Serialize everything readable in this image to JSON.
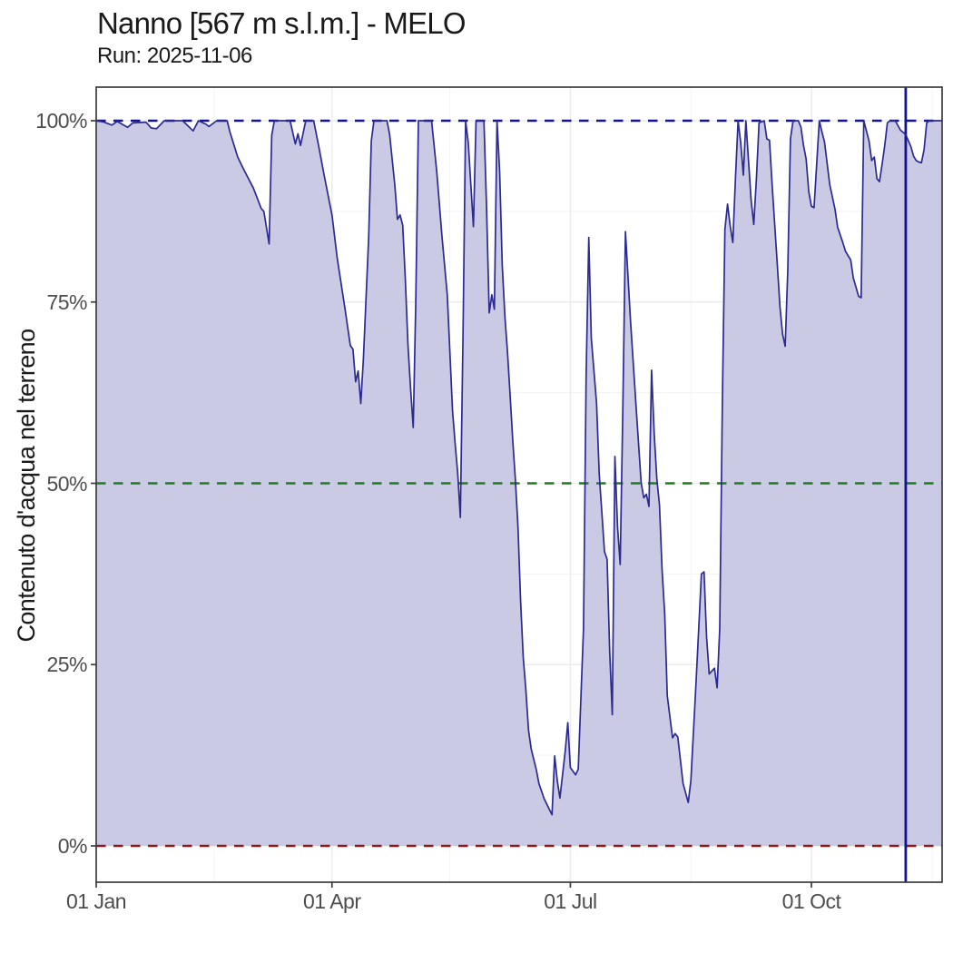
{
  "header": {
    "title": "Nanno [567 m s.l.m.] - MELO",
    "subtitle": "Run: 2025-11-06"
  },
  "colors": {
    "series_line": "#2a2a90",
    "series_fill": "#cbcae4",
    "threshold_100": "#14148f",
    "threshold_50": "#1f7d1f",
    "threshold_0": "#8f1a1a",
    "run_date_line": "#14148f",
    "grid_major": "#ebebeb",
    "grid_minor": "#f3f3f3",
    "panel_border": "#3c3c3c",
    "tick_text": "#4d4d4d",
    "title_text": "#1a1a1a"
  },
  "chart_data": {
    "type": "area",
    "title": "Nanno [567 m s.l.m.] - MELO",
    "subtitle": "Run: 2025-11-06",
    "xlabel": "",
    "ylabel": "Contenuto d'acqua nel terreno",
    "ylim": [
      -5,
      104.6
    ],
    "x_range": [
      "2025-01-01",
      "2025-11-20"
    ],
    "grid": "major+minor",
    "legend": "none",
    "y_ticks": [
      {
        "label": "0%",
        "value": 0
      },
      {
        "label": "25%",
        "value": 25
      },
      {
        "label": "50%",
        "value": 50
      },
      {
        "label": "75%",
        "value": 75
      },
      {
        "label": "100%",
        "value": 100
      }
    ],
    "x_ticks": [
      {
        "label": "01 Jan",
        "date": "2025-01-01"
      },
      {
        "label": "01 Apr",
        "date": "2025-04-01"
      },
      {
        "label": "01 Jul",
        "date": "2025-07-01"
      },
      {
        "label": "01 Oct",
        "date": "2025-10-01"
      }
    ],
    "x_minor_ticks": [
      "2025-02-15",
      "2025-05-16",
      "2025-08-16",
      "2025-11-16"
    ],
    "y_minor_ticks": [
      12.5,
      37.5,
      62.5,
      87.5
    ],
    "reference_lines": [
      {
        "axis": "y",
        "value": 100,
        "style": "dashed",
        "color": "#14148f",
        "name": "saturation-100pct"
      },
      {
        "axis": "y",
        "value": 50,
        "style": "dashed",
        "color": "#1f7d1f",
        "name": "threshold-50pct"
      },
      {
        "axis": "y",
        "value": 0,
        "style": "dashed",
        "color": "#8f1a1a",
        "name": "wilting-0pct"
      },
      {
        "axis": "x",
        "date": "2025-11-06",
        "style": "solid",
        "color": "#14148f",
        "name": "run-date"
      }
    ],
    "series": [
      {
        "name": "Contenuto d'acqua nel terreno",
        "fill": "#cbcae4",
        "line": "#2a2a90",
        "points": [
          [
            "2025-01-01",
            100
          ],
          [
            "2025-01-04",
            99.8
          ],
          [
            "2025-01-07",
            99.4
          ],
          [
            "2025-01-09",
            99.9
          ],
          [
            "2025-01-13",
            99.1
          ],
          [
            "2025-01-15",
            99.7
          ],
          [
            "2025-01-20",
            99.8
          ],
          [
            "2025-01-22",
            99.0
          ],
          [
            "2025-01-24",
            98.9
          ],
          [
            "2025-01-27",
            100
          ],
          [
            "2025-02-03",
            100
          ],
          [
            "2025-02-05",
            99.3
          ],
          [
            "2025-02-07",
            98.6
          ],
          [
            "2025-02-09",
            100
          ],
          [
            "2025-02-12",
            99.5
          ],
          [
            "2025-02-13",
            99.2
          ],
          [
            "2025-02-16",
            100
          ],
          [
            "2025-02-20",
            100
          ],
          [
            "2025-02-21",
            98.5
          ],
          [
            "2025-02-24",
            95.0
          ],
          [
            "2025-02-26",
            93.5
          ],
          [
            "2025-03-02",
            90.7
          ],
          [
            "2025-03-05",
            87.9
          ],
          [
            "2025-03-06",
            87.5
          ],
          [
            "2025-03-08",
            83.0
          ],
          [
            "2025-03-09",
            98.0
          ],
          [
            "2025-03-10",
            100
          ],
          [
            "2025-03-16",
            100
          ],
          [
            "2025-03-18",
            96.8
          ],
          [
            "2025-03-19",
            98.2
          ],
          [
            "2025-03-20",
            96.6
          ],
          [
            "2025-03-22",
            100
          ],
          [
            "2025-03-25",
            100
          ],
          [
            "2025-03-27",
            96.4
          ],
          [
            "2025-03-29",
            92.5
          ],
          [
            "2025-04-01",
            87.0
          ],
          [
            "2025-04-03",
            81.0
          ],
          [
            "2025-04-06",
            74.0
          ],
          [
            "2025-04-08",
            69.0
          ],
          [
            "2025-04-09",
            68.5
          ],
          [
            "2025-04-10",
            64.0
          ],
          [
            "2025-04-11",
            65.5
          ],
          [
            "2025-04-12",
            61.0
          ],
          [
            "2025-04-13",
            67.2
          ],
          [
            "2025-04-15",
            83.9
          ],
          [
            "2025-04-16",
            97.2
          ],
          [
            "2025-04-17",
            100
          ],
          [
            "2025-04-22",
            100
          ],
          [
            "2025-04-23",
            98.1
          ],
          [
            "2025-04-25",
            91.0
          ],
          [
            "2025-04-26",
            86.4
          ],
          [
            "2025-04-27",
            87.0
          ],
          [
            "2025-04-28",
            85.6
          ],
          [
            "2025-04-29",
            78.1
          ],
          [
            "2025-04-30",
            69.1
          ],
          [
            "2025-05-01",
            63.0
          ],
          [
            "2025-05-02",
            57.7
          ],
          [
            "2025-05-03",
            75.0
          ],
          [
            "2025-05-04",
            100
          ],
          [
            "2025-05-09",
            100
          ],
          [
            "2025-05-11",
            93.0
          ],
          [
            "2025-05-13",
            84.0
          ],
          [
            "2025-05-15",
            76.0
          ],
          [
            "2025-05-16",
            68.0
          ],
          [
            "2025-05-17",
            60.0
          ],
          [
            "2025-05-18",
            55.6
          ],
          [
            "2025-05-19",
            51.4
          ],
          [
            "2025-05-20",
            45.3
          ],
          [
            "2025-05-21",
            70.0
          ],
          [
            "2025-05-22",
            100
          ],
          [
            "2025-05-23",
            97.0
          ],
          [
            "2025-05-25",
            85.4
          ],
          [
            "2025-05-26",
            100
          ],
          [
            "2025-05-29",
            100
          ],
          [
            "2025-05-30",
            88.0
          ],
          [
            "2025-05-31",
            73.5
          ],
          [
            "2025-06-01",
            76.0
          ],
          [
            "2025-06-02",
            74.0
          ],
          [
            "2025-06-03",
            100
          ],
          [
            "2025-06-04",
            93.0
          ],
          [
            "2025-06-05",
            80.0
          ],
          [
            "2025-06-06",
            73.0
          ],
          [
            "2025-06-07",
            68.0
          ],
          [
            "2025-06-08",
            62.0
          ],
          [
            "2025-06-09",
            56.0
          ],
          [
            "2025-06-10",
            50.6
          ],
          [
            "2025-06-11",
            44.0
          ],
          [
            "2025-06-12",
            33.7
          ],
          [
            "2025-06-13",
            26.0
          ],
          [
            "2025-06-14",
            21.5
          ],
          [
            "2025-06-15",
            16.0
          ],
          [
            "2025-06-16",
            13.4
          ],
          [
            "2025-06-18",
            10.5
          ],
          [
            "2025-06-19",
            8.6
          ],
          [
            "2025-06-21",
            6.5
          ],
          [
            "2025-06-23",
            5.0
          ],
          [
            "2025-06-24",
            4.3
          ],
          [
            "2025-06-25",
            12.4
          ],
          [
            "2025-06-26",
            9.0
          ],
          [
            "2025-06-27",
            6.6
          ],
          [
            "2025-06-29",
            13.0
          ],
          [
            "2025-06-30",
            17.0
          ],
          [
            "2025-07-01",
            10.8
          ],
          [
            "2025-07-03",
            9.8
          ],
          [
            "2025-07-04",
            10.6
          ],
          [
            "2025-07-06",
            30.0
          ],
          [
            "2025-07-07",
            65.0
          ],
          [
            "2025-07-08",
            83.9
          ],
          [
            "2025-07-09",
            70.0
          ],
          [
            "2025-07-11",
            61.0
          ],
          [
            "2025-07-12",
            51.3
          ],
          [
            "2025-07-13",
            46.0
          ],
          [
            "2025-07-14",
            40.6
          ],
          [
            "2025-07-15",
            39.5
          ],
          [
            "2025-07-16",
            27.0
          ],
          [
            "2025-07-17",
            18.1
          ],
          [
            "2025-07-18",
            53.7
          ],
          [
            "2025-07-19",
            44.0
          ],
          [
            "2025-07-20",
            38.8
          ],
          [
            "2025-07-21",
            60.0
          ],
          [
            "2025-07-22",
            84.7
          ],
          [
            "2025-07-24",
            72.2
          ],
          [
            "2025-07-26",
            61.0
          ],
          [
            "2025-07-28",
            50.1
          ],
          [
            "2025-07-29",
            48.0
          ],
          [
            "2025-07-30",
            48.5
          ],
          [
            "2025-07-31",
            46.8
          ],
          [
            "2025-08-01",
            65.6
          ],
          [
            "2025-08-02",
            56.8
          ],
          [
            "2025-08-03",
            50.6
          ],
          [
            "2025-08-04",
            47.0
          ],
          [
            "2025-08-05",
            38.0
          ],
          [
            "2025-08-06",
            31.9
          ],
          [
            "2025-08-07",
            20.7
          ],
          [
            "2025-08-09",
            14.9
          ],
          [
            "2025-08-10",
            15.5
          ],
          [
            "2025-08-11",
            15.0
          ],
          [
            "2025-08-13",
            8.6
          ],
          [
            "2025-08-15",
            6.0
          ],
          [
            "2025-08-16",
            9.0
          ],
          [
            "2025-08-18",
            22.8
          ],
          [
            "2025-08-20",
            37.5
          ],
          [
            "2025-08-21",
            37.8
          ],
          [
            "2025-08-22",
            28.8
          ],
          [
            "2025-08-23",
            23.7
          ],
          [
            "2025-08-25",
            24.5
          ],
          [
            "2025-08-26",
            21.8
          ],
          [
            "2025-08-27",
            30.0
          ],
          [
            "2025-08-28",
            61.3
          ],
          [
            "2025-08-29",
            85.0
          ],
          [
            "2025-08-30",
            88.5
          ],
          [
            "2025-08-31",
            85.5
          ],
          [
            "2025-09-01",
            83.2
          ],
          [
            "2025-09-02",
            92.0
          ],
          [
            "2025-09-03",
            100
          ],
          [
            "2025-09-04",
            97.0
          ],
          [
            "2025-09-05",
            92.5
          ],
          [
            "2025-09-06",
            100
          ],
          [
            "2025-09-07",
            94.5
          ],
          [
            "2025-09-08",
            89.0
          ],
          [
            "2025-09-09",
            85.7
          ],
          [
            "2025-09-10",
            92.0
          ],
          [
            "2025-09-11",
            99.7
          ],
          [
            "2025-09-13",
            100
          ],
          [
            "2025-09-14",
            97.5
          ],
          [
            "2025-09-15",
            97.3
          ],
          [
            "2025-09-16",
            91.2
          ],
          [
            "2025-09-18",
            80.0
          ],
          [
            "2025-09-19",
            74.3
          ],
          [
            "2025-09-20",
            70.6
          ],
          [
            "2025-09-21",
            68.9
          ],
          [
            "2025-09-22",
            79.5
          ],
          [
            "2025-09-23",
            97.5
          ],
          [
            "2025-09-24",
            100
          ],
          [
            "2025-09-26",
            100
          ],
          [
            "2025-09-27",
            99.1
          ],
          [
            "2025-09-28",
            96.6
          ],
          [
            "2025-09-29",
            94.7
          ],
          [
            "2025-09-30",
            90.2
          ],
          [
            "2025-10-01",
            88.2
          ],
          [
            "2025-10-02",
            88.0
          ],
          [
            "2025-10-03",
            94.0
          ],
          [
            "2025-10-04",
            100
          ],
          [
            "2025-10-05",
            98.5
          ],
          [
            "2025-10-06",
            97.1
          ],
          [
            "2025-10-08",
            91.2
          ],
          [
            "2025-10-10",
            87.8
          ],
          [
            "2025-10-11",
            85.3
          ],
          [
            "2025-10-13",
            83.2
          ],
          [
            "2025-10-14",
            82.0
          ],
          [
            "2025-10-16",
            80.8
          ],
          [
            "2025-10-17",
            78.3
          ],
          [
            "2025-10-19",
            75.8
          ],
          [
            "2025-10-20",
            75.6
          ],
          [
            "2025-10-21",
            100
          ],
          [
            "2025-10-23",
            97.2
          ],
          [
            "2025-10-24",
            94.5
          ],
          [
            "2025-10-25",
            95.0
          ],
          [
            "2025-10-26",
            92.0
          ],
          [
            "2025-10-27",
            91.6
          ],
          [
            "2025-10-28",
            94.0
          ],
          [
            "2025-10-29",
            96.6
          ],
          [
            "2025-10-30",
            99.7
          ],
          [
            "2025-10-31",
            100
          ],
          [
            "2025-11-02",
            100
          ],
          [
            "2025-11-04",
            98.7
          ],
          [
            "2025-11-06",
            98.1
          ],
          [
            "2025-11-08",
            96.4
          ],
          [
            "2025-11-09",
            95.1
          ],
          [
            "2025-11-10",
            94.5
          ],
          [
            "2025-11-11",
            94.3
          ],
          [
            "2025-11-12",
            94.2
          ],
          [
            "2025-11-13",
            96.0
          ],
          [
            "2025-11-14",
            99.7
          ],
          [
            "2025-11-15",
            100
          ],
          [
            "2025-11-17",
            100
          ],
          [
            "2025-11-20",
            100
          ]
        ]
      }
    ]
  }
}
